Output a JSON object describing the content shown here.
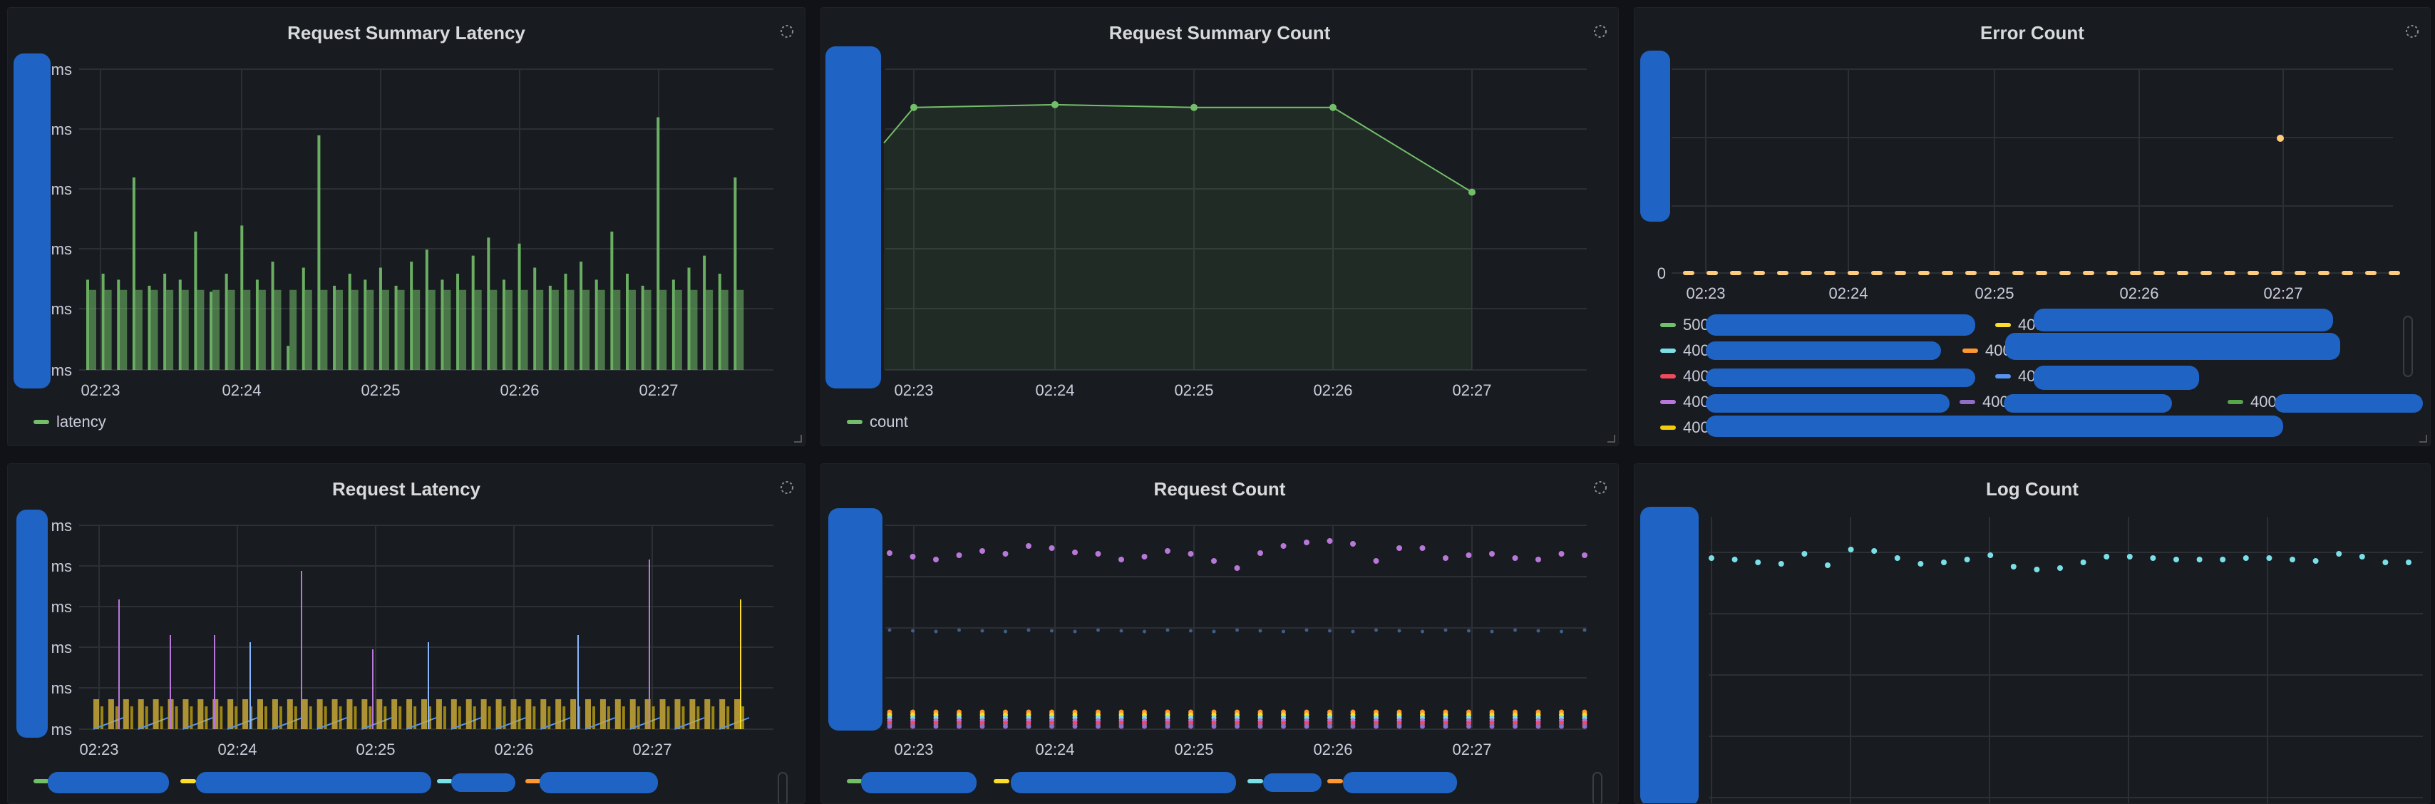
{
  "panels": {
    "p1": {
      "title": "Request Summary Latency",
      "y_unit": "ms",
      "x_ticks": [
        "02:23",
        "02:24",
        "02:25",
        "02:26",
        "02:27"
      ],
      "legend": [
        "latency"
      ]
    },
    "p2": {
      "title": "Request Summary Count",
      "x_ticks": [
        "02:23",
        "02:24",
        "02:25",
        "02:26",
        "02:27"
      ],
      "legend": [
        "count"
      ]
    },
    "p3": {
      "title": "Error Count",
      "y_zero": "0",
      "x_ticks": [
        "02:23",
        "02:24",
        "02:25",
        "02:26",
        "02:27"
      ],
      "legend": [
        "500",
        "405",
        "400",
        "400",
        "400",
        "400",
        "400",
        "400(",
        "400(",
        "400(",
        "400("
      ]
    },
    "p4": {
      "title": "Request Latency",
      "y_unit": "ms",
      "x_ticks": [
        "02:23",
        "02:24",
        "02:25",
        "02:26",
        "02:27"
      ]
    },
    "p5": {
      "title": "Request Count",
      "x_ticks": [
        "02:23",
        "02:24",
        "02:25",
        "02:26",
        "02:27"
      ]
    },
    "p6": {
      "title": "Log Count"
    }
  },
  "colors": {
    "green": "#73bf69",
    "yellow": "#fade2a",
    "peach": "#f2cc0c",
    "light_blue": "#8ab8ff",
    "cyan": "#7ae0e8",
    "orange": "#ff9830",
    "red": "#f2495c",
    "blue": "#5794f2",
    "purple": "#b877d9",
    "dark_green": "#56a64b",
    "redaction": "#1f63c4"
  },
  "chart_data": [
    {
      "type": "bar",
      "panel": "Request Summary Latency",
      "x_ticks": [
        "02:23",
        "02:24",
        "02:25",
        "02:26",
        "02:27"
      ],
      "series": [
        {
          "name": "latency",
          "values": [
            1.5,
            1.6,
            1.5,
            3.2,
            1.4,
            1.6,
            1.5,
            2.3,
            1.3,
            1.6,
            2.4,
            1.5,
            1.8,
            0.4,
            1.7,
            3.9,
            1.4,
            1.6,
            1.5,
            1.7,
            1.4,
            1.8,
            2.0,
            1.5,
            1.6,
            1.9,
            2.2,
            1.5,
            2.1,
            1.7,
            1.4,
            1.6,
            1.8,
            1.5,
            2.3,
            1.6,
            1.4,
            4.2,
            1.5,
            1.7,
            1.9,
            1.6,
            3.2
          ]
        }
      ]
    },
    {
      "type": "area",
      "panel": "Request Summary Count",
      "x": [
        "02:23",
        "02:24",
        "02:25",
        "02:26",
        "02:27"
      ],
      "series": [
        {
          "name": "count",
          "values": [
            96,
            97,
            96,
            96,
            65
          ]
        }
      ]
    },
    {
      "type": "scatter",
      "panel": "Error Count",
      "y_ticks": [
        "0"
      ],
      "series": [
        {
          "name": "500",
          "values": [
            0
          ]
        },
        {
          "name": "405",
          "values": [
            1
          ]
        }
      ]
    },
    {
      "type": "line",
      "panel": "Request Latency",
      "x_ticks": [
        "02:23",
        "02:24",
        "02:25",
        "02:26",
        "02:27"
      ]
    },
    {
      "type": "scatter",
      "panel": "Request Count",
      "x_ticks": [
        "02:23",
        "02:24",
        "02:25",
        "02:26",
        "02:27"
      ]
    },
    {
      "type": "scatter",
      "panel": "Log Count"
    }
  ]
}
